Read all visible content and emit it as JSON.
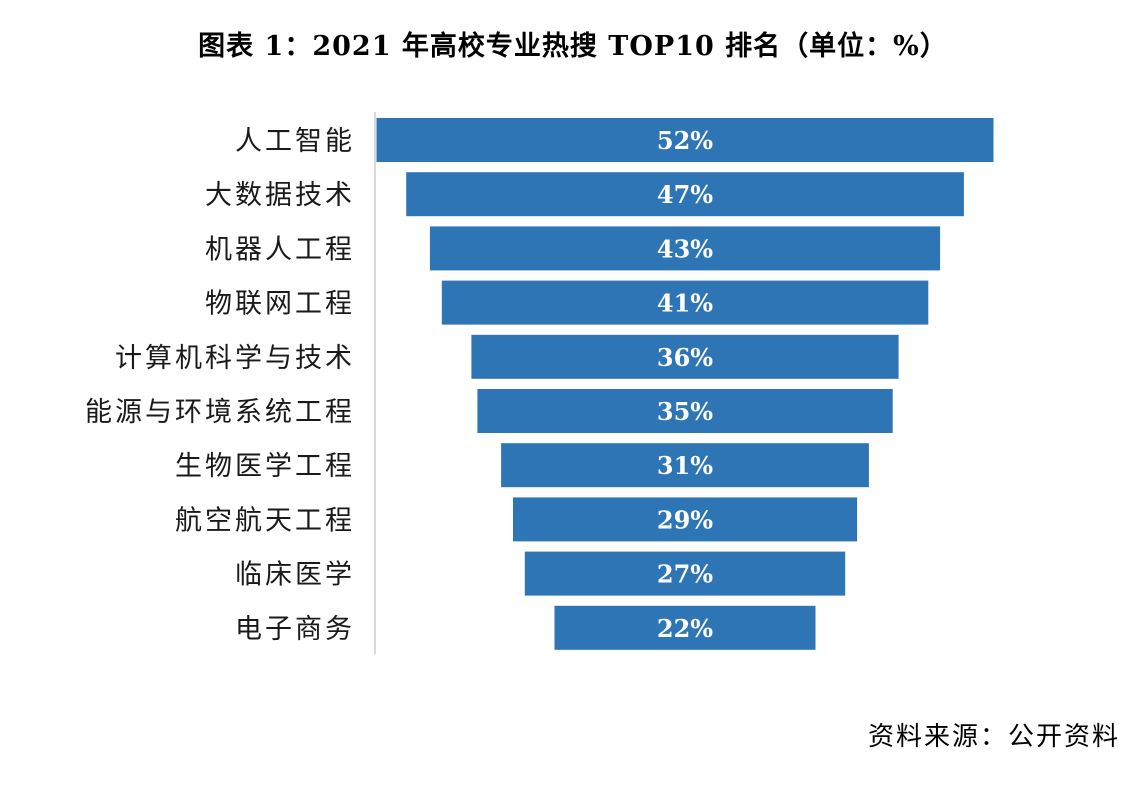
{
  "title": "图表 1：2021 年高校专业热搜 TOP10 排名（单位：%）",
  "source": "资料来源：公开资料",
  "colors": {
    "bar": "#2e75b6",
    "axis": "#d9d9d9",
    "label": "#ffffff"
  },
  "chart_data": {
    "type": "bar",
    "orientation": "horizontal",
    "layout": "centered-funnel",
    "categories": [
      "人工智能",
      "大数据技术",
      "机器人工程",
      "物联网工程",
      "计算机科学与技术",
      "能源与环境系统工程",
      "生物医学工程",
      "航空航天工程",
      "临床医学",
      "电子商务"
    ],
    "values": [
      52,
      47,
      43,
      41,
      36,
      35,
      31,
      29,
      27,
      22
    ],
    "data_labels": [
      "52%",
      "47%",
      "43%",
      "41%",
      "36%",
      "35%",
      "31%",
      "29%",
      "27%",
      "22%"
    ],
    "unit": "%",
    "xlabel": "",
    "ylabel": "",
    "legend": "none",
    "grid": false
  }
}
